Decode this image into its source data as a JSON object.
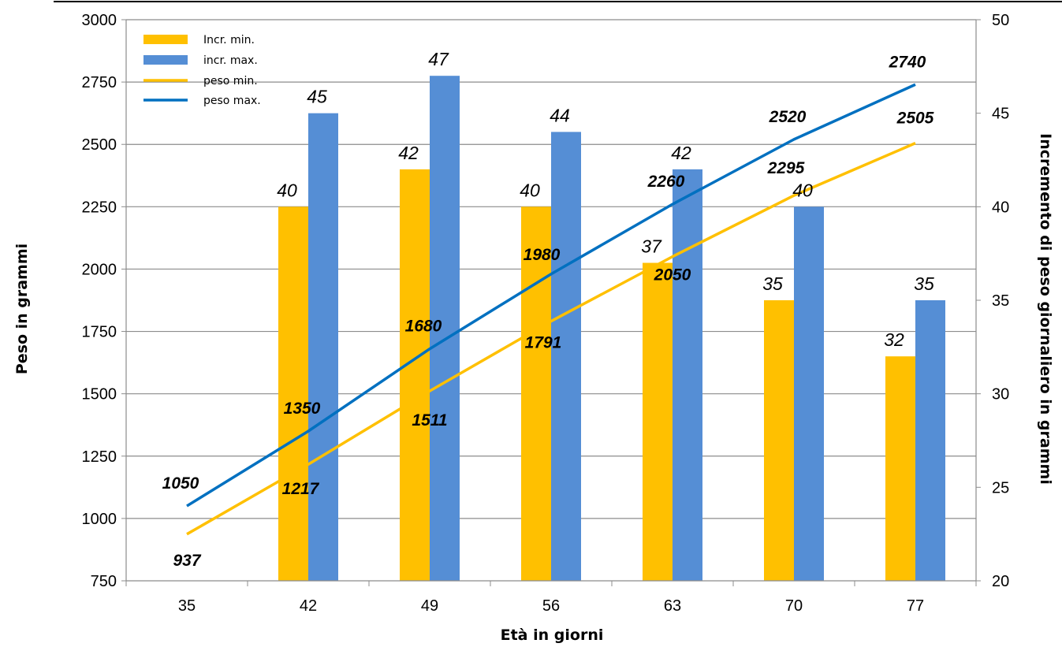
{
  "chart_data": {
    "type": "bar",
    "title": "",
    "xlabel": "Età in giorni",
    "ylabel_left": "Peso in grammi",
    "ylabel_right": "Incremento di peso giornaliero in grammi",
    "categories": [
      "35",
      "42",
      "49",
      "56",
      "63",
      "70",
      "77"
    ],
    "y_left_lim": [
      750,
      3000
    ],
    "y_left_ticks": [
      "750",
      "1000",
      "1250",
      "1500",
      "1750",
      "2000",
      "2250",
      "2500",
      "2750",
      "3000"
    ],
    "y_right_lim": [
      20,
      50
    ],
    "y_right_ticks": [
      "20",
      "25",
      "30",
      "35",
      "40",
      "45",
      "50"
    ],
    "grid": true,
    "legend_position": "top-left",
    "bar_series": [
      {
        "name": "Incr. min.",
        "color": "#FFC000",
        "axis": "right",
        "values": [
          null,
          40,
          42,
          40,
          37,
          35,
          32
        ]
      },
      {
        "name": "incr. max.",
        "color": "#558ED5",
        "axis": "right",
        "values": [
          null,
          45,
          47,
          44,
          42,
          40,
          35
        ]
      }
    ],
    "line_series": [
      {
        "name": "peso min.",
        "color": "#FFC000",
        "axis": "left",
        "values": [
          937,
          1217,
          1511,
          1791,
          2050,
          2295,
          2505
        ]
      },
      {
        "name": "peso max.",
        "color": "#0070C0",
        "axis": "left",
        "values": [
          1050,
          1350,
          1680,
          1980,
          2260,
          2520,
          2740
        ]
      }
    ]
  }
}
